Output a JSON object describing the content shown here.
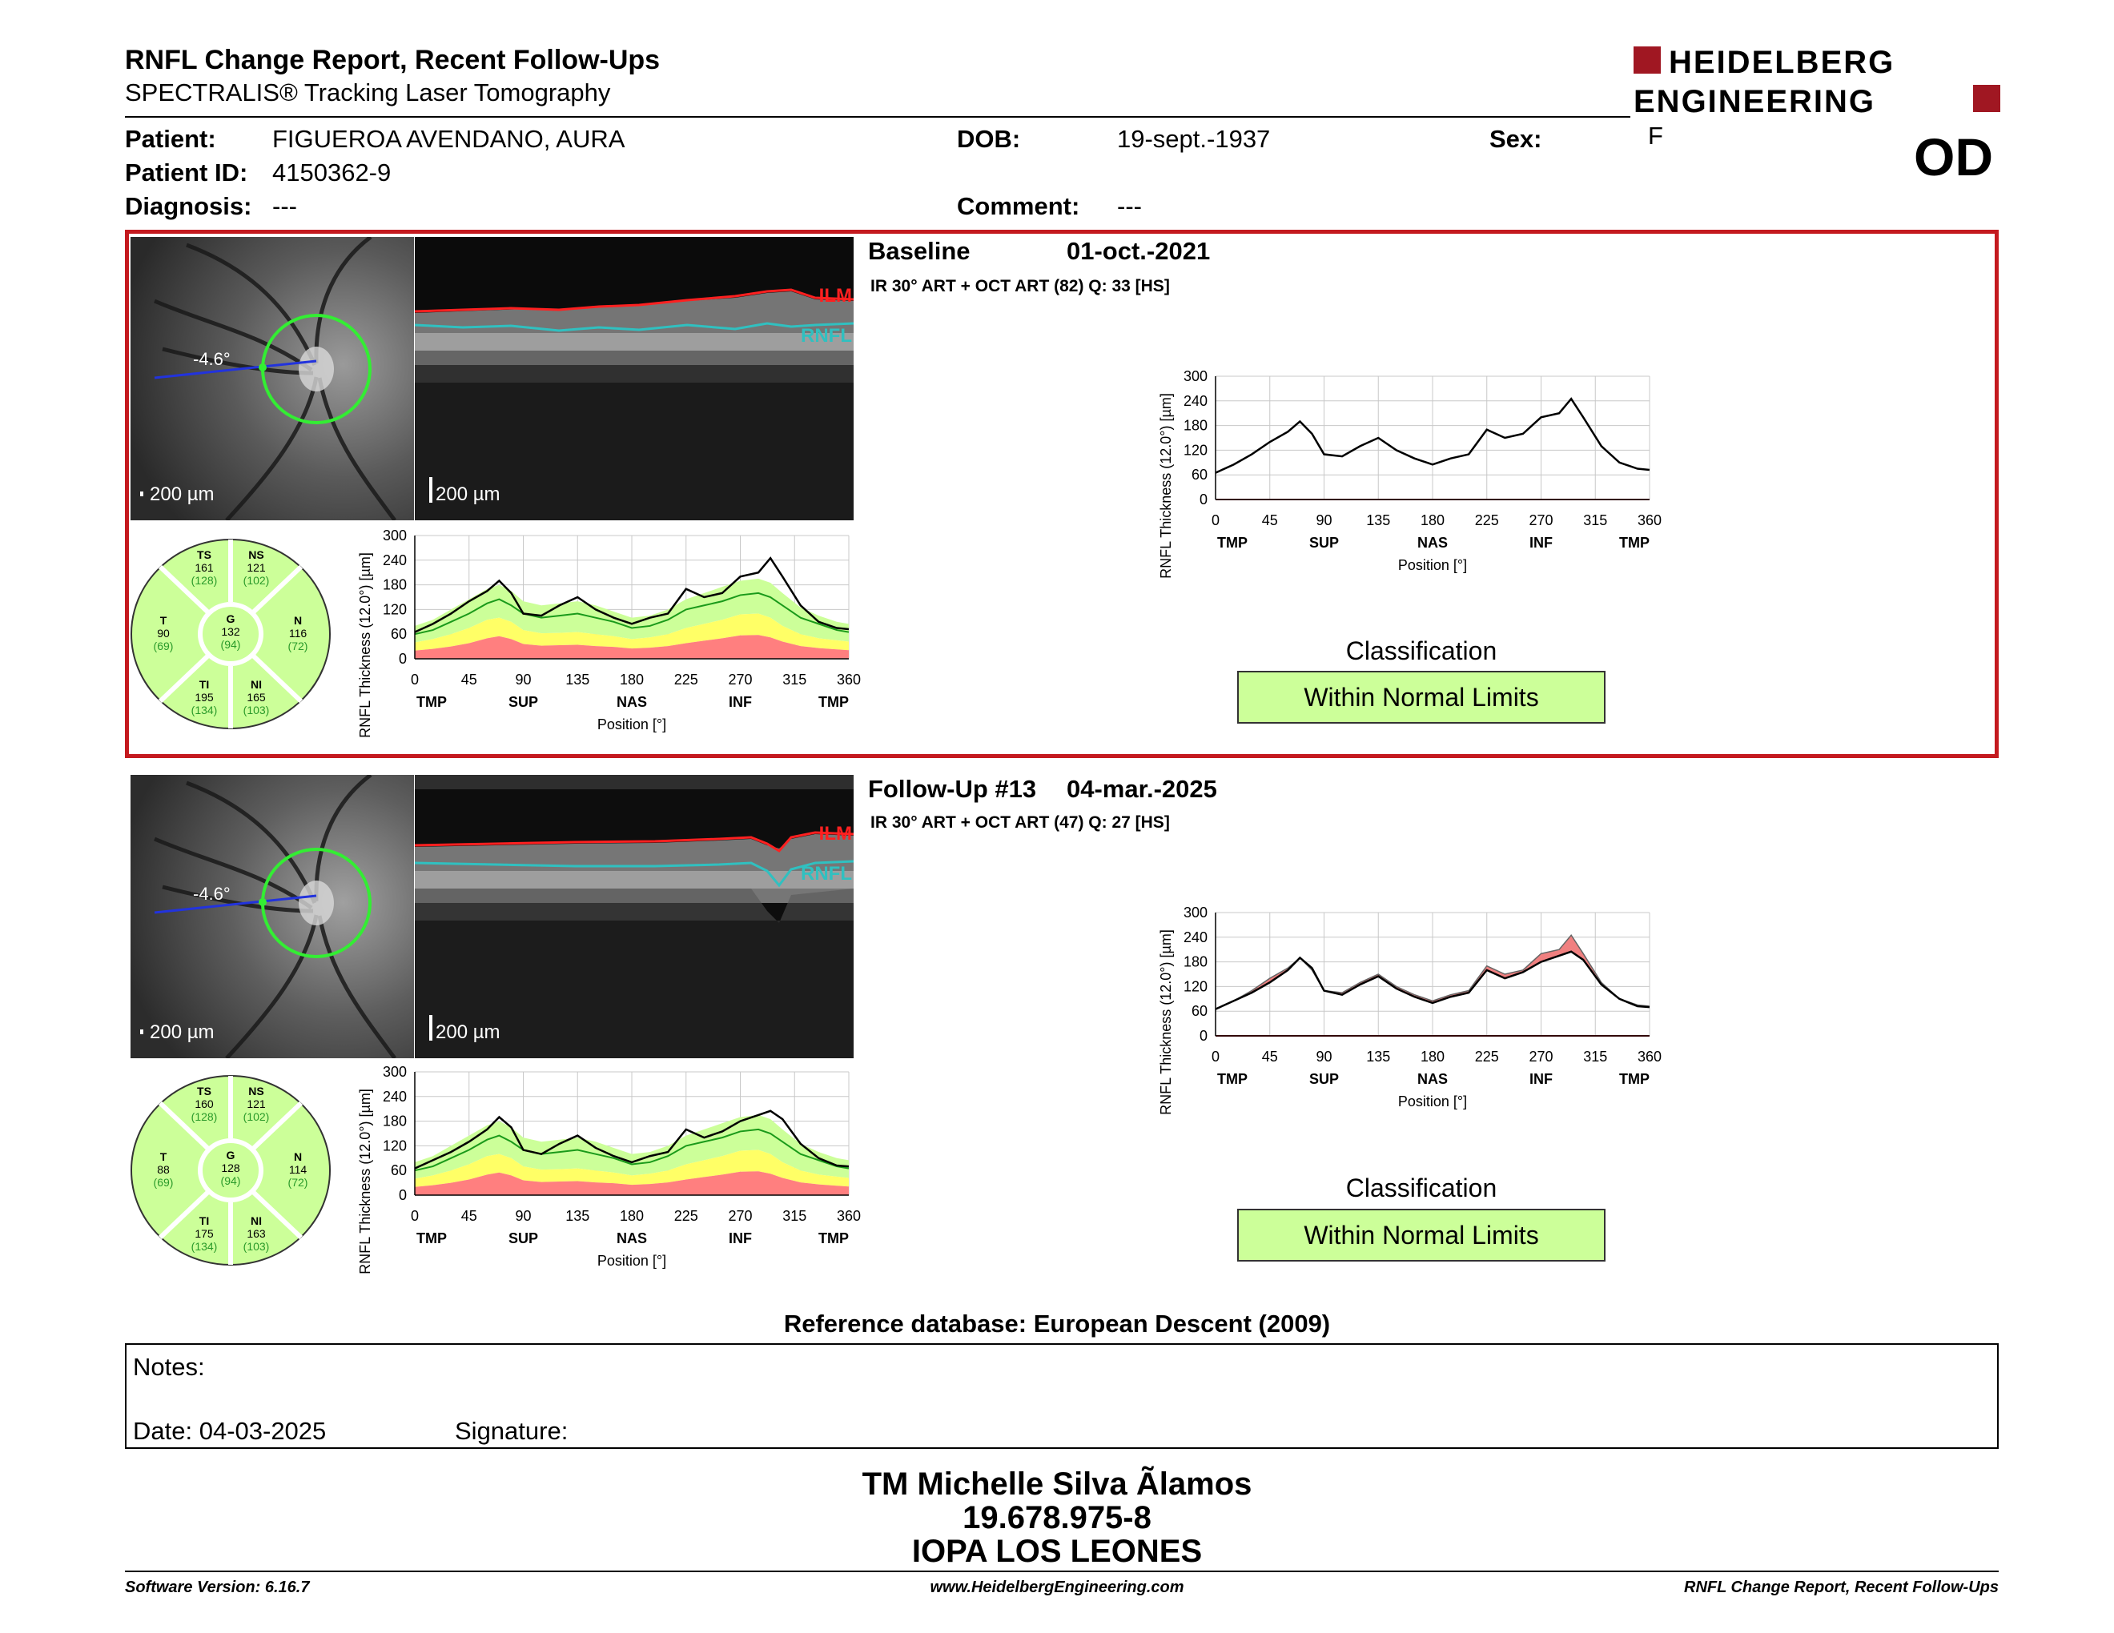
{
  "header": {
    "title": "RNFL Change Report, Recent Follow-Ups",
    "subtitle": "SPECTRALIS® Tracking Laser Tomography",
    "logo_line1": "HEIDELBERG",
    "logo_line2": "ENGINEERING",
    "eye": "OD"
  },
  "patient": {
    "name_label": "Patient:",
    "name": "FIGUEROA AVENDANO, AURA",
    "id_label": "Patient ID:",
    "id": "4150362-9",
    "diagnosis_label": "Diagnosis:",
    "diagnosis": "---",
    "dob_label": "DOB:",
    "dob": "19-sept.-1937",
    "comment_label": "Comment:",
    "comment": "---",
    "sex_label": "Sex:",
    "sex": "F"
  },
  "colors": {
    "frame_red": "#c41a1f",
    "normal_green": "#ccff99",
    "border_yellow": "#ffff66",
    "outside_red": "#ff7f7f",
    "ilm": "#ff2020",
    "rnfl": "#30c0c0"
  },
  "scans": [
    {
      "title": "Baseline",
      "date": "01-oct.-2021",
      "info": "IR 30° ART + OCT ART (82) Q: 33 [HS]",
      "angle": "-4.6°",
      "scale_fundus": "200 µm",
      "scale_oct": "200 µm",
      "ilm_label": "ILM",
      "rnfl_label": "RNFL",
      "sectors": {
        "TS": {
          "name": "TS",
          "value": "161",
          "ref": "(128)"
        },
        "NS": {
          "name": "NS",
          "value": "121",
          "ref": "(102)"
        },
        "T": {
          "name": "T",
          "value": "90",
          "ref": "(69)"
        },
        "G": {
          "name": "G",
          "value": "132",
          "ref": "(94)"
        },
        "N": {
          "name": "N",
          "value": "116",
          "ref": "(72)"
        },
        "TI": {
          "name": "TI",
          "value": "195",
          "ref": "(134)"
        },
        "NI": {
          "name": "NI",
          "value": "165",
          "ref": "(103)"
        }
      },
      "classification_title": "Classification",
      "classification": "Within Normal Limits"
    },
    {
      "title": "Follow-Up #13",
      "date": "04-mar.-2025",
      "info": "IR 30° ART + OCT ART (47) Q: 27 [HS]",
      "angle": "-4.6°",
      "scale_fundus": "200 µm",
      "scale_oct": "200 µm",
      "ilm_label": "ILM",
      "rnfl_label": "RNFL",
      "sectors": {
        "TS": {
          "name": "TS",
          "value": "160",
          "ref": "(128)"
        },
        "NS": {
          "name": "NS",
          "value": "121",
          "ref": "(102)"
        },
        "T": {
          "name": "T",
          "value": "88",
          "ref": "(69)"
        },
        "G": {
          "name": "G",
          "value": "128",
          "ref": "(94)"
        },
        "N": {
          "name": "N",
          "value": "114",
          "ref": "(72)"
        },
        "TI": {
          "name": "TI",
          "value": "175",
          "ref": "(134)"
        },
        "NI": {
          "name": "NI",
          "value": "163",
          "ref": "(103)"
        }
      },
      "classification_title": "Classification",
      "classification": "Within Normal Limits"
    }
  ],
  "chart_data": [
    {
      "type": "line",
      "id": "baseline-normative",
      "ylabel": "RNFL Thickness (12.0°) [µm]",
      "xlabel": "Position [°]",
      "xlim": [
        0,
        360
      ],
      "ylim": [
        0,
        300
      ],
      "xticks": [
        0,
        45,
        90,
        135,
        180,
        225,
        270,
        315,
        360
      ],
      "yticks": [
        0,
        60,
        120,
        180,
        240,
        300
      ],
      "region_labels": [
        "TMP",
        "SUP",
        "NAS",
        "INF",
        "TMP"
      ],
      "region_positions": [
        0,
        90,
        180,
        270,
        360
      ],
      "x": [
        0,
        15,
        30,
        45,
        60,
        70,
        80,
        90,
        105,
        120,
        135,
        150,
        165,
        180,
        195,
        210,
        225,
        240,
        255,
        270,
        285,
        295,
        305,
        320,
        335,
        350,
        360
      ],
      "series": [
        {
          "values": [
            65,
            85,
            110,
            140,
            165,
            190,
            160,
            110,
            105,
            130,
            150,
            120,
            100,
            85,
            100,
            110,
            170,
            150,
            160,
            200,
            210,
            245,
            200,
            130,
            90,
            75,
            72
          ]
        },
        {
          "values": [
            60,
            70,
            90,
            110,
            135,
            145,
            130,
            110,
            100,
            105,
            110,
            100,
            90,
            75,
            80,
            95,
            120,
            130,
            140,
            155,
            160,
            150,
            130,
            100,
            85,
            70,
            65
          ]
        },
        {
          "values": [
            80,
            95,
            120,
            145,
            170,
            180,
            165,
            140,
            130,
            135,
            140,
            130,
            115,
            100,
            105,
            120,
            145,
            160,
            175,
            190,
            195,
            185,
            160,
            125,
            105,
            90,
            85
          ]
        },
        {
          "values": [
            40,
            48,
            60,
            75,
            95,
            100,
            90,
            70,
            62,
            63,
            65,
            60,
            55,
            48,
            52,
            60,
            75,
            85,
            95,
            108,
            110,
            100,
            80,
            60,
            50,
            45,
            42
          ]
        },
        {
          "values": [
            20,
            24,
            30,
            38,
            50,
            55,
            48,
            36,
            32,
            33,
            34,
            31,
            29,
            25,
            27,
            31,
            38,
            44,
            50,
            57,
            58,
            52,
            42,
            31,
            26,
            23,
            21
          ]
        }
      ]
    },
    {
      "type": "line",
      "id": "baseline-profile",
      "ylabel": "RNFL Thickness (12.0°) [µm]",
      "xlabel": "Position [°]",
      "xlim": [
        0,
        360
      ],
      "ylim": [
        0,
        300
      ],
      "xticks": [
        0,
        45,
        90,
        135,
        180,
        225,
        270,
        315,
        360
      ],
      "yticks": [
        0,
        60,
        120,
        180,
        240,
        300
      ],
      "region_labels": [
        "TMP",
        "SUP",
        "NAS",
        "INF",
        "TMP"
      ],
      "region_positions": [
        0,
        90,
        180,
        270,
        360
      ],
      "x": [
        0,
        15,
        30,
        45,
        60,
        70,
        80,
        90,
        105,
        120,
        135,
        150,
        165,
        180,
        195,
        210,
        225,
        240,
        255,
        270,
        285,
        295,
        305,
        320,
        335,
        350,
        360
      ],
      "series": [
        {
          "values": [
            65,
            85,
            110,
            140,
            165,
            190,
            160,
            110,
            105,
            130,
            150,
            120,
            100,
            85,
            100,
            110,
            170,
            150,
            160,
            200,
            210,
            245,
            200,
            130,
            90,
            75,
            72
          ]
        }
      ]
    },
    {
      "type": "line",
      "id": "followup-normative",
      "ylabel": "RNFL Thickness (12.0°) [µm]",
      "xlabel": "Position [°]",
      "xlim": [
        0,
        360
      ],
      "ylim": [
        0,
        300
      ],
      "xticks": [
        0,
        45,
        90,
        135,
        180,
        225,
        270,
        315,
        360
      ],
      "yticks": [
        0,
        60,
        120,
        180,
        240,
        300
      ],
      "region_labels": [
        "TMP",
        "SUP",
        "NAS",
        "INF",
        "TMP"
      ],
      "region_positions": [
        0,
        90,
        180,
        270,
        360
      ],
      "x": [
        0,
        15,
        30,
        45,
        60,
        70,
        80,
        90,
        105,
        120,
        135,
        150,
        165,
        180,
        195,
        210,
        225,
        240,
        255,
        270,
        285,
        295,
        305,
        320,
        335,
        350,
        360
      ],
      "series": [
        {
          "values": [
            65,
            85,
            105,
            130,
            160,
            190,
            165,
            110,
            100,
            125,
            145,
            115,
            95,
            80,
            95,
            105,
            160,
            140,
            155,
            180,
            195,
            205,
            185,
            125,
            90,
            72,
            70
          ]
        },
        {
          "values": [
            60,
            70,
            90,
            110,
            135,
            145,
            130,
            110,
            100,
            105,
            110,
            100,
            90,
            75,
            80,
            95,
            120,
            130,
            140,
            155,
            160,
            150,
            130,
            100,
            85,
            70,
            65
          ]
        },
        {
          "values": [
            80,
            95,
            120,
            145,
            170,
            180,
            165,
            140,
            130,
            135,
            140,
            130,
            115,
            100,
            105,
            120,
            145,
            160,
            175,
            190,
            195,
            185,
            160,
            125,
            105,
            90,
            85
          ]
        },
        {
          "values": [
            40,
            48,
            60,
            75,
            95,
            100,
            90,
            70,
            62,
            63,
            65,
            60,
            55,
            48,
            52,
            60,
            75,
            85,
            95,
            108,
            110,
            100,
            80,
            60,
            50,
            45,
            42
          ]
        },
        {
          "values": [
            20,
            24,
            30,
            38,
            50,
            55,
            48,
            36,
            32,
            33,
            34,
            31,
            29,
            25,
            27,
            31,
            38,
            44,
            50,
            57,
            58,
            52,
            42,
            31,
            26,
            23,
            21
          ]
        }
      ]
    },
    {
      "type": "line",
      "id": "followup-change",
      "ylabel": "RNFL Thickness (12.0°) [µm]",
      "xlabel": "Position [°]",
      "xlim": [
        0,
        360
      ],
      "ylim": [
        0,
        300
      ],
      "xticks": [
        0,
        45,
        90,
        135,
        180,
        225,
        270,
        315,
        360
      ],
      "yticks": [
        0,
        60,
        120,
        180,
        240,
        300
      ],
      "region_labels": [
        "TMP",
        "SUP",
        "NAS",
        "INF",
        "TMP"
      ],
      "region_positions": [
        0,
        90,
        180,
        270,
        360
      ],
      "x": [
        0,
        15,
        30,
        45,
        60,
        70,
        80,
        90,
        105,
        120,
        135,
        150,
        165,
        180,
        195,
        210,
        225,
        240,
        255,
        270,
        285,
        295,
        305,
        320,
        335,
        350,
        360
      ],
      "series": [
        {
          "values": [
            65,
            85,
            110,
            140,
            165,
            190,
            160,
            110,
            105,
            130,
            150,
            120,
            100,
            85,
            100,
            110,
            170,
            150,
            160,
            200,
            210,
            245,
            200,
            130,
            90,
            75,
            72
          ]
        },
        {
          "values": [
            65,
            85,
            105,
            130,
            160,
            190,
            165,
            110,
            100,
            125,
            145,
            115,
            95,
            80,
            95,
            105,
            160,
            140,
            155,
            180,
            195,
            205,
            185,
            125,
            90,
            72,
            70
          ]
        }
      ]
    }
  ],
  "reference": "Reference database: European Descent (2009)",
  "notes": {
    "label": "Notes:",
    "date_label": "Date: 04-03-2025",
    "signature_label": "Signature:"
  },
  "technician": {
    "name": "TM Michelle Silva Ãlamos",
    "id": "19.678.975-8",
    "center": "IOPA LOS LEONES"
  },
  "footer": {
    "version": "Software Version: 6.16.7",
    "url": "www.HeidelbergEngineering.com",
    "report": "RNFL Change Report, Recent Follow-Ups"
  }
}
